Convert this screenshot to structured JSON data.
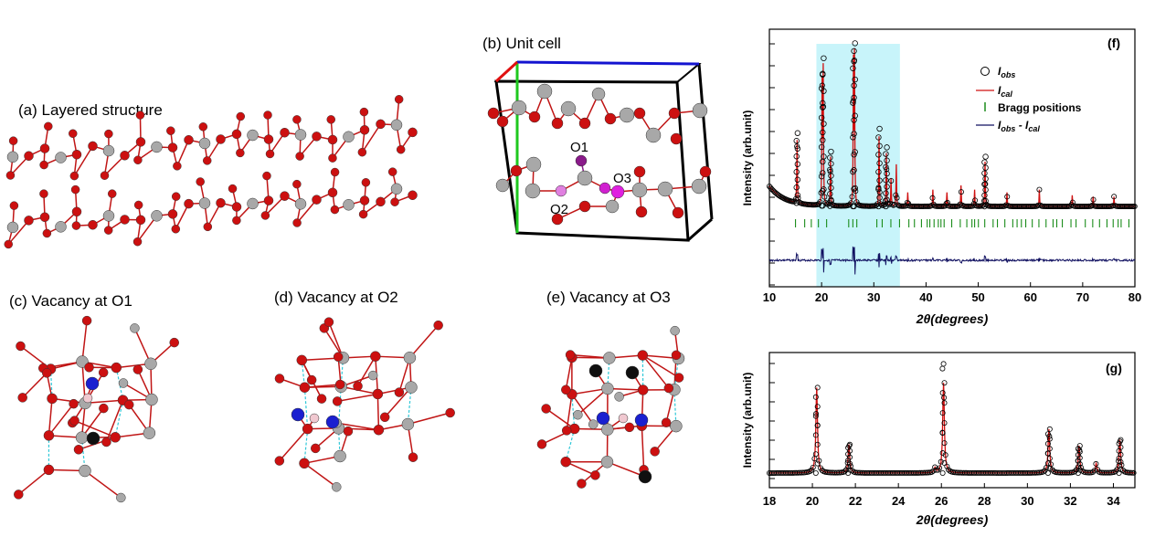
{
  "panels": {
    "a": {
      "label": "(a) Layered structure"
    },
    "b": {
      "label": "(b) Unit cell",
      "atoms": [
        "O1",
        "O2",
        "O3"
      ]
    },
    "c": {
      "label": "(c) Vacancy at O1"
    },
    "d": {
      "label": "(d) Vacancy at O2"
    },
    "e": {
      "label": "(e) Vacancy at O3"
    }
  },
  "chart_data": [
    {
      "type": "scatter",
      "panel": "(f)",
      "xlabel": "2θ(degrees)",
      "ylabel": "Intensity (arb.unit)",
      "xlim": [
        10,
        80
      ],
      "xticks": [
        10,
        20,
        30,
        40,
        50,
        60,
        70,
        80
      ],
      "highlight_range": [
        19,
        35
      ],
      "highlight_color": "#c8f4fa",
      "legend": [
        "I_obs",
        "I_cal",
        "Bragg positions",
        "I_obs - I_cal"
      ],
      "legend_position": "top-right",
      "peaks": [
        {
          "x": 15.3,
          "h": 0.45
        },
        {
          "x": 20.1,
          "h": 0.85
        },
        {
          "x": 20.3,
          "h": 0.95
        },
        {
          "x": 21.7,
          "h": 0.35
        },
        {
          "x": 26.1,
          "h": 1.0
        },
        {
          "x": 26.3,
          "h": 1.05
        },
        {
          "x": 31.0,
          "h": 0.5
        },
        {
          "x": 32.4,
          "h": 0.38
        },
        {
          "x": 33.3,
          "h": 0.2
        },
        {
          "x": 34.3,
          "h": 0.3
        },
        {
          "x": 36.5,
          "h": 0.1
        },
        {
          "x": 41.3,
          "h": 0.12
        },
        {
          "x": 44.0,
          "h": 0.1
        },
        {
          "x": 46.7,
          "h": 0.15
        },
        {
          "x": 49.3,
          "h": 0.12
        },
        {
          "x": 51.3,
          "h": 0.32
        },
        {
          "x": 55.5,
          "h": 0.1
        },
        {
          "x": 61.7,
          "h": 0.12
        },
        {
          "x": 68.0,
          "h": 0.08
        },
        {
          "x": 72.0,
          "h": 0.07
        },
        {
          "x": 76.0,
          "h": 0.07
        }
      ],
      "colors": {
        "obs": "#000000",
        "cal": "#d01010",
        "bragg": "#1a8c1a",
        "diff": "#101060"
      }
    },
    {
      "type": "scatter",
      "panel": "(g)",
      "xlabel": "2θ(degrees)",
      "ylabel": "Intensity (arb.unit)",
      "xlim": [
        18,
        35
      ],
      "xticks": [
        18,
        20,
        22,
        24,
        26,
        28,
        30,
        32,
        34
      ],
      "peaks": [
        {
          "x": 20.2,
          "h": 0.72
        },
        {
          "x": 21.7,
          "h": 0.24
        },
        {
          "x": 25.7,
          "h": 0.04
        },
        {
          "x": 26.1,
          "h": 0.76
        },
        {
          "x": 31.0,
          "h": 0.37
        },
        {
          "x": 32.4,
          "h": 0.23
        },
        {
          "x": 33.2,
          "h": 0.08
        },
        {
          "x": 34.3,
          "h": 0.28
        }
      ],
      "obs_outliers": [
        {
          "x": 26.05,
          "h": 0.88
        },
        {
          "x": 26.1,
          "h": 0.92
        }
      ]
    }
  ]
}
